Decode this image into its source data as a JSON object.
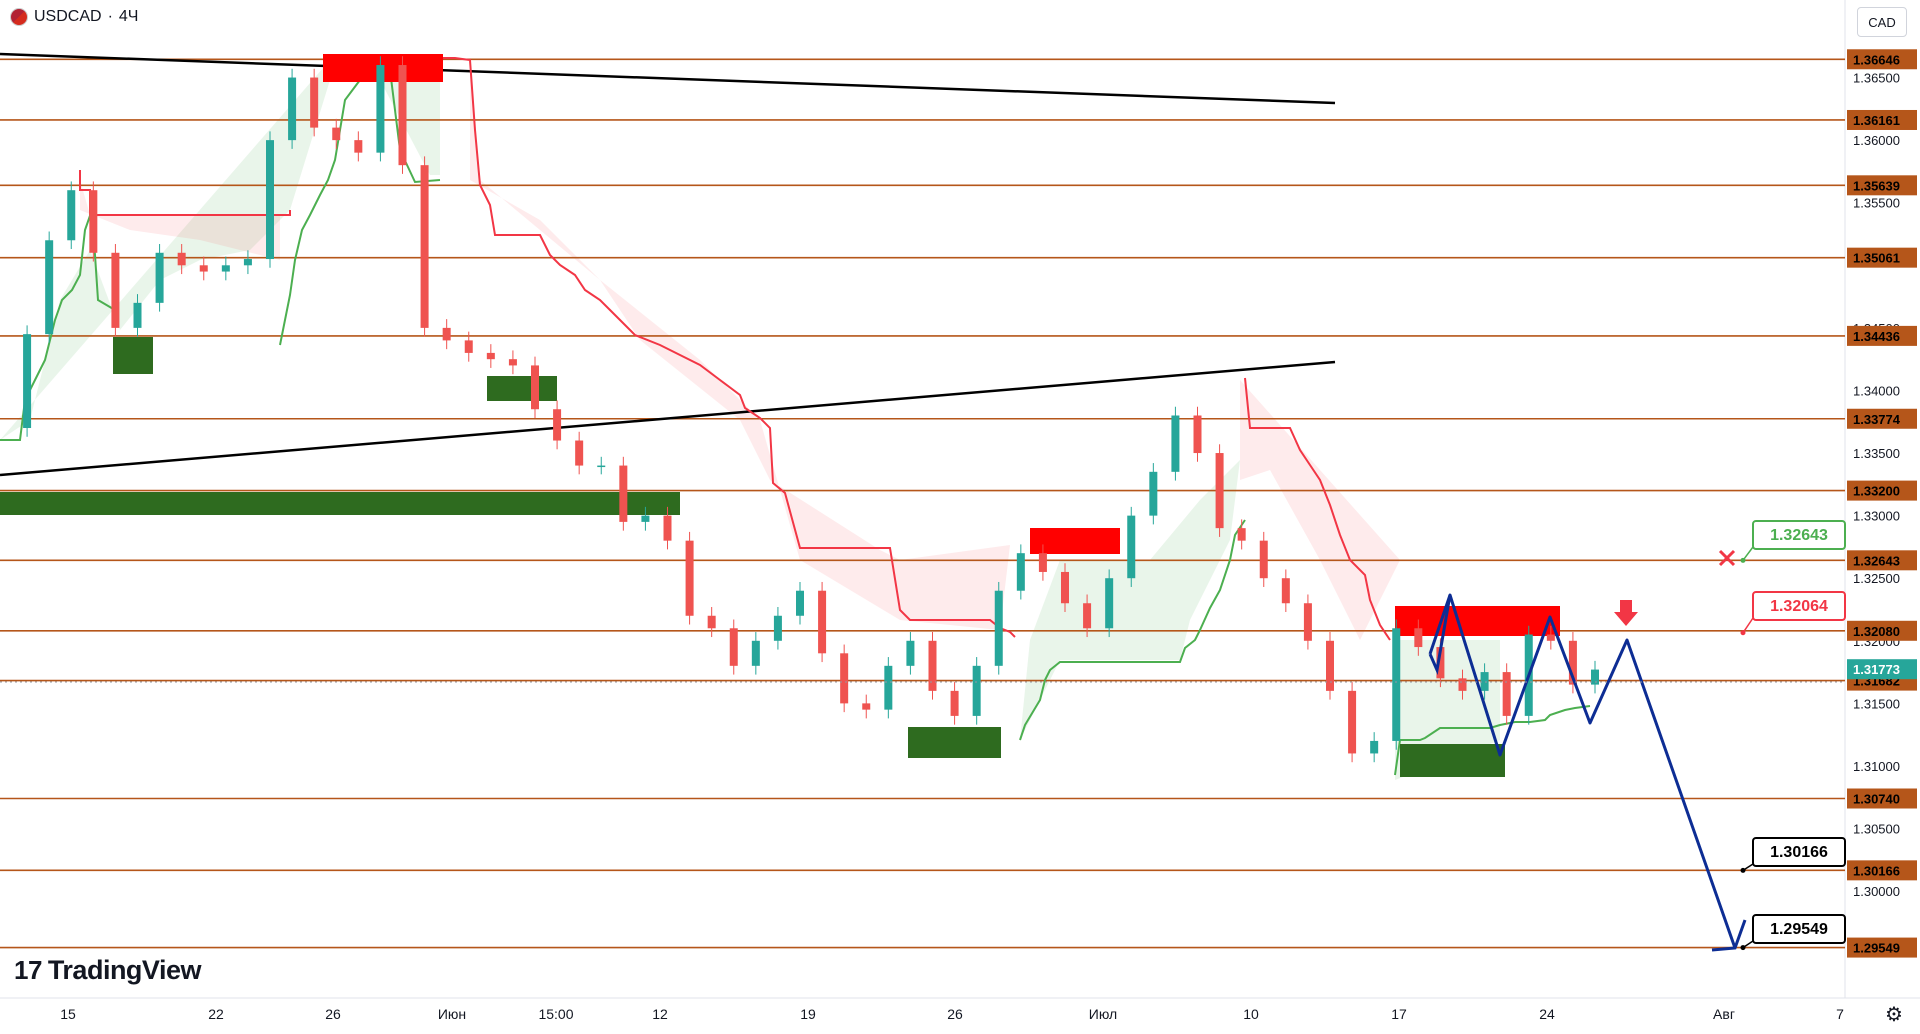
{
  "header": {
    "symbol": "USDCAD",
    "separator": "·",
    "timeframe": "4Ч"
  },
  "currency_button": "CAD",
  "logo_text": "TradingView",
  "colors": {
    "level": "#b5561a",
    "trend": "#000000",
    "stop_red": "#f23645",
    "stop_green": "#4caf50",
    "supply": "#ff0000",
    "demand": "#2e6b1f",
    "forecast": "#0d2d94",
    "up": "#26a69a",
    "bg": "#ffffff"
  },
  "chart_data": {
    "type": "line",
    "symbol": "USDCAD",
    "timeframe": "4Ч",
    "x_tick_labels": [
      "15",
      "22",
      "26",
      "Июн",
      "15:00",
      "12",
      "19",
      "26",
      "Июл",
      "10",
      "17",
      "24",
      "Авг",
      "7"
    ],
    "y_axis_ticks": [
      "1.36500",
      "1.36000",
      "1.35500",
      "1.34500",
      "1.34000",
      "1.33500",
      "1.33000",
      "1.32500",
      "1.32000",
      "1.31500",
      "1.31000",
      "1.30500",
      "1.30000"
    ],
    "ylim": [
      1.2925,
      1.368
    ],
    "horizontal_levels": [
      1.36646,
      1.36161,
      1.35639,
      1.35061,
      1.34436,
      1.33774,
      1.332,
      1.32643,
      1.3208,
      1.31682,
      1.3074,
      1.30166,
      1.29549
    ],
    "current_price": 1.31773,
    "price_labels": {
      "target_1": "1.30166",
      "target_2": "1.29549",
      "entry": "1.32064",
      "stop": "1.32643"
    },
    "forecast_path": [
      1.3209,
      1.3148,
      1.3205,
      1.297
    ],
    "price_path": [
      1.337,
      1.3445,
      1.352,
      1.356,
      1.351,
      1.345,
      1.347,
      1.351,
      1.35,
      1.3495,
      1.35,
      1.3505,
      1.36,
      1.365,
      1.361,
      1.36,
      1.359,
      1.366,
      1.358,
      1.345,
      1.344,
      1.343,
      1.3425,
      1.342,
      1.3385,
      1.336,
      1.334,
      1.334,
      1.3295,
      1.33,
      1.328,
      1.322,
      1.321,
      1.318,
      1.32,
      1.322,
      1.324,
      1.319,
      1.315,
      1.3145,
      1.318,
      1.32,
      1.316,
      1.314,
      1.318,
      1.324,
      1.327,
      1.3255,
      1.323,
      1.321,
      1.325,
      1.33,
      1.3335,
      1.338,
      1.335,
      1.329,
      1.328,
      1.325,
      1.323,
      1.32,
      1.316,
      1.311,
      1.312,
      1.321,
      1.3195,
      1.317,
      1.316,
      1.3175,
      1.314,
      1.3205,
      1.32,
      1.3165,
      1.3177
    ]
  }
}
